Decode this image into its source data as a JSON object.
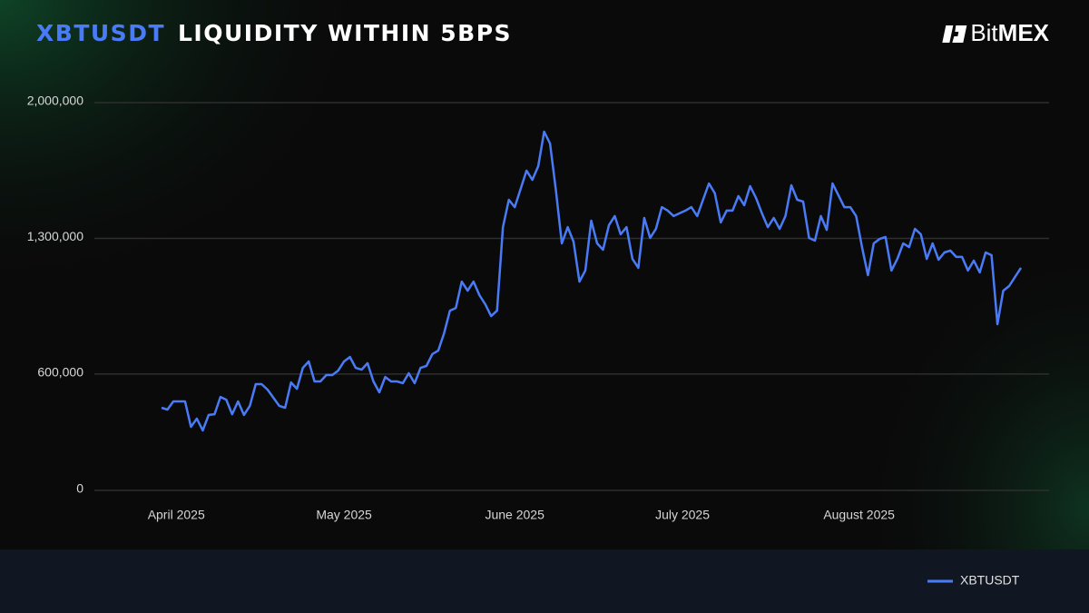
{
  "chart_data": {
    "type": "line",
    "title_highlight": "XBTUSDT",
    "title": "LIQUIDITY WITHIN 5BPS",
    "brand": {
      "light": "Bit",
      "bold": "MEX"
    },
    "ylim": [
      0,
      2000000
    ],
    "yticks": [
      {
        "value": 0,
        "label": "0"
      },
      {
        "value": 600000,
        "label": "600,000"
      },
      {
        "value": 1300000,
        "label": "1,300,000"
      },
      {
        "value": 2000000,
        "label": "2,000,000"
      }
    ],
    "xlim": [
      0,
      146
    ],
    "xticks": [
      {
        "value": 2.5,
        "label": "April 2025"
      },
      {
        "value": 31,
        "label": "May 2025"
      },
      {
        "value": 60,
        "label": "June 2025"
      },
      {
        "value": 88.5,
        "label": "July 2025"
      },
      {
        "value": 118.5,
        "label": "August 2025"
      }
    ],
    "grid": true,
    "legend": "bottom-right",
    "series": [
      {
        "name": "XBTUSDT",
        "color": "#4a7bf7",
        "values": [
          426000,
          417000,
          459000,
          459000,
          459000,
          328000,
          370000,
          309000,
          389000,
          393000,
          482000,
          468000,
          393000,
          459000,
          389000,
          436000,
          548000,
          548000,
          520000,
          478000,
          436000,
          426000,
          557000,
          524000,
          632000,
          665000,
          562000,
          562000,
          595000,
          595000,
          618000,
          665000,
          688000,
          632000,
          623000,
          656000,
          562000,
          506000,
          585000,
          562000,
          562000,
          553000,
          604000,
          553000,
          632000,
          642000,
          703000,
          721000,
          810000,
          927000,
          941000,
          1077000,
          1030000,
          1077000,
          1007000,
          960000,
          899000,
          927000,
          1358000,
          1499000,
          1461000,
          1555000,
          1649000,
          1602000,
          1672000,
          1850000,
          1789000,
          1546000,
          1274000,
          1358000,
          1283000,
          1077000,
          1134000,
          1391000,
          1274000,
          1241000,
          1368000,
          1415000,
          1321000,
          1358000,
          1194000,
          1148000,
          1405000,
          1302000,
          1349000,
          1461000,
          1443000,
          1415000,
          1429000,
          1443000,
          1461000,
          1415000,
          1499000,
          1583000,
          1532000,
          1382000,
          1443000,
          1443000,
          1518000,
          1471000,
          1569000,
          1508000,
          1429000,
          1358000,
          1405000,
          1349000,
          1415000,
          1574000,
          1499000,
          1490000,
          1302000,
          1288000,
          1415000,
          1344000,
          1583000,
          1522000,
          1461000,
          1461000,
          1415000,
          1255000,
          1110000,
          1274000,
          1297000,
          1307000,
          1134000,
          1194000,
          1274000,
          1255000,
          1349000,
          1321000,
          1194000,
          1274000,
          1190000,
          1227000,
          1237000,
          1204000,
          1204000,
          1134000,
          1185000,
          1124000,
          1227000,
          1213000,
          857000,
          1030000,
          1054000,
          1101000,
          1148000
        ]
      }
    ]
  }
}
